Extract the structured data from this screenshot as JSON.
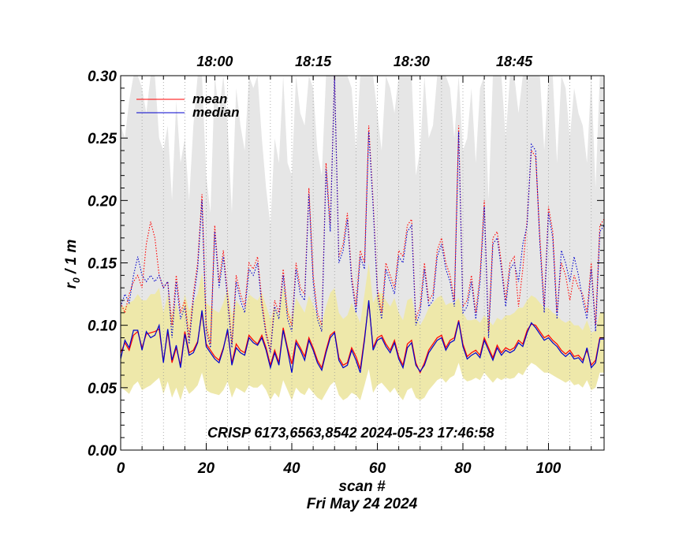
{
  "chart_data": {
    "type": "line",
    "xlabel": "scan #",
    "ylabel_main": "r",
    "ylabel_sub": "0",
    "ylabel_rest": " / 1 m",
    "date_label": "Fri May 24 2024",
    "annotation": "CRISP 6173,6563,8542 2024-05-23 17:46:58",
    "xlim": [
      0,
      113
    ],
    "ylim": [
      0.0,
      0.3
    ],
    "x_ticks": [
      "0",
      "20",
      "40",
      "60",
      "80",
      "100"
    ],
    "x_tick_values": [
      0,
      20,
      40,
      60,
      80,
      100
    ],
    "y_ticks": [
      "0.00",
      "0.05",
      "0.10",
      "0.15",
      "0.20",
      "0.25",
      "0.30"
    ],
    "y_tick_values": [
      0.0,
      0.05,
      0.1,
      0.15,
      0.2,
      0.25,
      0.3
    ],
    "time_ticks": [
      {
        "label": "18:00",
        "scan": 22
      },
      {
        "label": "18:15",
        "scan": 45
      },
      {
        "label": "18:30",
        "scan": 68
      },
      {
        "label": "18:45",
        "scan": 92
      }
    ],
    "scan_markers": [
      5,
      10,
      15,
      20,
      25,
      30,
      35,
      40,
      45,
      50,
      55,
      60,
      65,
      70,
      75,
      80,
      85,
      90,
      95,
      100,
      105,
      110
    ],
    "legend": [
      {
        "name": "mean",
        "color": "#ff0000"
      },
      {
        "name": "median",
        "color": "#0000cc"
      }
    ],
    "colors": {
      "mean": "#ff0000",
      "median": "#0000cc",
      "band": "#eee8aa",
      "gray_band": "#e6e6e6"
    },
    "series": [
      {
        "name": "mean",
        "style": "solid",
        "values": [
          0.078,
          0.086,
          0.08,
          0.092,
          0.095,
          0.082,
          0.093,
          0.094,
          0.095,
          0.097,
          0.071,
          0.095,
          0.07,
          0.082,
          0.068,
          0.095,
          0.078,
          0.08,
          0.087,
          0.11,
          0.085,
          0.08,
          0.075,
          0.072,
          0.082,
          0.095,
          0.07,
          0.085,
          0.08,
          0.078,
          0.092,
          0.088,
          0.085,
          0.092,
          0.082,
          0.068,
          0.08,
          0.07,
          0.098,
          0.082,
          0.069,
          0.088,
          0.082,
          0.075,
          0.09,
          0.082,
          0.072,
          0.066,
          0.08,
          0.092,
          0.095,
          0.074,
          0.068,
          0.07,
          0.082,
          0.075,
          0.065,
          0.09,
          0.118,
          0.082,
          0.09,
          0.092,
          0.085,
          0.08,
          0.088,
          0.075,
          0.068,
          0.085,
          0.088,
          0.07,
          0.062,
          0.07,
          0.08,
          0.085,
          0.09,
          0.092,
          0.082,
          0.088,
          0.09,
          0.104,
          0.085,
          0.075,
          0.078,
          0.08,
          0.076,
          0.09,
          0.082,
          0.074,
          0.084,
          0.078,
          0.082,
          0.08,
          0.082,
          0.088,
          0.085,
          0.096,
          0.101,
          0.1,
          0.095,
          0.09,
          0.092,
          0.088,
          0.085,
          0.08,
          0.077,
          0.08,
          0.075,
          0.076,
          0.072,
          0.08,
          0.068,
          0.072,
          0.09,
          0.09
        ]
      },
      {
        "name": "median",
        "style": "solid",
        "values": [
          0.073,
          0.088,
          0.082,
          0.096,
          0.096,
          0.08,
          0.095,
          0.09,
          0.092,
          0.1,
          0.07,
          0.097,
          0.072,
          0.084,
          0.066,
          0.093,
          0.076,
          0.078,
          0.086,
          0.112,
          0.083,
          0.078,
          0.073,
          0.07,
          0.081,
          0.097,
          0.068,
          0.082,
          0.078,
          0.076,
          0.09,
          0.086,
          0.084,
          0.09,
          0.08,
          0.066,
          0.078,
          0.068,
          0.096,
          0.08,
          0.062,
          0.086,
          0.08,
          0.072,
          0.088,
          0.08,
          0.07,
          0.064,
          0.078,
          0.09,
          0.094,
          0.072,
          0.066,
          0.068,
          0.08,
          0.072,
          0.062,
          0.088,
          0.12,
          0.08,
          0.088,
          0.09,
          0.083,
          0.078,
          0.086,
          0.073,
          0.066,
          0.082,
          0.086,
          0.068,
          0.063,
          0.068,
          0.078,
          0.083,
          0.088,
          0.09,
          0.08,
          0.086,
          0.088,
          0.103,
          0.083,
          0.073,
          0.076,
          0.078,
          0.074,
          0.088,
          0.08,
          0.072,
          0.082,
          0.076,
          0.08,
          0.078,
          0.08,
          0.086,
          0.083,
          0.094,
          0.102,
          0.098,
          0.093,
          0.088,
          0.09,
          0.086,
          0.083,
          0.078,
          0.075,
          0.078,
          0.073,
          0.074,
          0.07,
          0.082,
          0.066,
          0.07,
          0.089,
          0.089
        ]
      },
      {
        "name": "mean_upper",
        "style": "dotted",
        "color": "#ff0000",
        "values": [
          0.118,
          0.11,
          0.125,
          0.135,
          0.14,
          0.13,
          0.165,
          0.183,
          0.17,
          0.14,
          0.13,
          0.135,
          0.1,
          0.14,
          0.11,
          0.12,
          0.09,
          0.125,
          0.15,
          0.205,
          0.1,
          0.085,
          0.18,
          0.135,
          0.16,
          0.125,
          0.085,
          0.14,
          0.125,
          0.115,
          0.15,
          0.145,
          0.155,
          0.12,
          0.095,
          0.08,
          0.12,
          0.11,
          0.145,
          0.11,
          0.1,
          0.15,
          0.13,
          0.125,
          0.21,
          0.14,
          0.11,
          0.1,
          0.23,
          0.18,
          0.3,
          0.155,
          0.165,
          0.19,
          0.14,
          0.115,
          0.16,
          0.15,
          0.26,
          0.2,
          0.13,
          0.11,
          0.15,
          0.14,
          0.13,
          0.16,
          0.155,
          0.18,
          0.185,
          0.105,
          0.115,
          0.15,
          0.12,
          0.125,
          0.16,
          0.17,
          0.15,
          0.14,
          0.12,
          0.26,
          0.115,
          0.12,
          0.14,
          0.11,
          0.14,
          0.2,
          0.095,
          0.17,
          0.175,
          0.15,
          0.12,
          0.15,
          0.155,
          0.115,
          0.145,
          0.185,
          0.24,
          0.235,
          0.17,
          0.115,
          0.195,
          0.175,
          0.11,
          0.15,
          0.14,
          0.12,
          0.14,
          0.13,
          0.125,
          0.11,
          0.15,
          0.1,
          0.18,
          0.185
        ]
      },
      {
        "name": "median_upper",
        "style": "dotted",
        "color": "#0000cc",
        "values": [
          0.115,
          0.125,
          0.118,
          0.14,
          0.155,
          0.14,
          0.135,
          0.14,
          0.135,
          0.14,
          0.13,
          0.135,
          0.09,
          0.135,
          0.105,
          0.115,
          0.085,
          0.12,
          0.145,
          0.2,
          0.095,
          0.082,
          0.175,
          0.13,
          0.155,
          0.12,
          0.082,
          0.135,
          0.12,
          0.11,
          0.145,
          0.14,
          0.15,
          0.115,
          0.092,
          0.078,
          0.115,
          0.105,
          0.14,
          0.105,
          0.095,
          0.145,
          0.125,
          0.12,
          0.205,
          0.135,
          0.105,
          0.095,
          0.225,
          0.175,
          0.3,
          0.15,
          0.16,
          0.185,
          0.135,
          0.11,
          0.155,
          0.145,
          0.255,
          0.195,
          0.125,
          0.105,
          0.145,
          0.135,
          0.125,
          0.155,
          0.15,
          0.175,
          0.18,
          0.1,
          0.11,
          0.145,
          0.115,
          0.12,
          0.155,
          0.165,
          0.145,
          0.135,
          0.115,
          0.255,
          0.11,
          0.115,
          0.135,
          0.105,
          0.135,
          0.195,
          0.09,
          0.165,
          0.17,
          0.145,
          0.115,
          0.145,
          0.15,
          0.135,
          0.165,
          0.18,
          0.245,
          0.24,
          0.165,
          0.11,
          0.19,
          0.17,
          0.105,
          0.16,
          0.15,
          0.135,
          0.155,
          0.14,
          0.12,
          0.105,
          0.145,
          0.095,
          0.175,
          0.18
        ]
      },
      {
        "name": "yellow_upper",
        "style": "band",
        "values": [
          0.115,
          0.115,
          0.118,
          0.12,
          0.125,
          0.12,
          0.12,
          0.125,
          0.125,
          0.13,
          0.11,
          0.125,
          0.108,
          0.118,
          0.105,
          0.125,
          0.112,
          0.118,
          0.125,
          0.142,
          0.118,
          0.115,
          0.112,
          0.11,
          0.118,
          0.13,
          0.108,
          0.12,
          0.115,
          0.112,
          0.125,
          0.122,
          0.12,
          0.126,
          0.116,
          0.105,
          0.115,
          0.108,
          0.132,
          0.116,
          0.105,
          0.122,
          0.116,
          0.11,
          0.124,
          0.116,
          0.108,
          0.102,
          0.115,
          0.126,
          0.13,
          0.11,
          0.105,
          0.108,
          0.118,
          0.11,
          0.102,
          0.125,
          0.15,
          0.118,
          0.125,
          0.126,
          0.12,
          0.115,
          0.122,
          0.11,
          0.104,
          0.12,
          0.122,
          0.108,
          0.1,
          0.106,
          0.114,
          0.118,
          0.122,
          0.124,
          0.116,
          0.118,
          0.118,
          0.122,
          0.11,
          0.104,
          0.104,
          0.105,
          0.102,
          0.108,
          0.104,
          0.1,
          0.106,
          0.104,
          0.108,
          0.108,
          0.11,
          0.114,
          0.114,
          0.12,
          0.124,
          0.122,
          0.118,
          0.114,
          0.114,
          0.11,
          0.108,
          0.104,
          0.102,
          0.104,
          0.1,
          0.1,
          0.096,
          0.104,
          0.094,
          0.096,
          0.11,
          0.11
        ]
      },
      {
        "name": "yellow_lower",
        "style": "band",
        "values": [
          0.05,
          0.048,
          0.045,
          0.052,
          0.055,
          0.048,
          0.05,
          0.052,
          0.055,
          0.058,
          0.045,
          0.055,
          0.042,
          0.05,
          0.04,
          0.052,
          0.045,
          0.048,
          0.052,
          0.062,
          0.048,
          0.046,
          0.045,
          0.044,
          0.048,
          0.055,
          0.042,
          0.05,
          0.048,
          0.046,
          0.052,
          0.05,
          0.05,
          0.053,
          0.048,
          0.04,
          0.046,
          0.042,
          0.056,
          0.048,
          0.04,
          0.05,
          0.046,
          0.044,
          0.05,
          0.046,
          0.042,
          0.04,
          0.046,
          0.052,
          0.055,
          0.044,
          0.04,
          0.042,
          0.046,
          0.044,
          0.04,
          0.052,
          0.065,
          0.046,
          0.052,
          0.054,
          0.05,
          0.046,
          0.05,
          0.044,
          0.04,
          0.048,
          0.05,
          0.042,
          0.04,
          0.042,
          0.048,
          0.052,
          0.056,
          0.058,
          0.054,
          0.058,
          0.06,
          0.07,
          0.058,
          0.055,
          0.056,
          0.058,
          0.056,
          0.062,
          0.058,
          0.054,
          0.058,
          0.056,
          0.058,
          0.057,
          0.058,
          0.062,
          0.06,
          0.066,
          0.07,
          0.068,
          0.065,
          0.062,
          0.062,
          0.06,
          0.058,
          0.056,
          0.054,
          0.056,
          0.052,
          0.053,
          0.05,
          0.056,
          0.048,
          0.05,
          0.062,
          0.062
        ]
      },
      {
        "name": "gray_upper",
        "style": "band",
        "values": [
          0.26,
          0.25,
          0.28,
          0.3,
          0.3,
          0.29,
          0.27,
          0.3,
          0.3,
          0.25,
          0.24,
          0.26,
          0.2,
          0.28,
          0.23,
          0.25,
          0.2,
          0.26,
          0.3,
          0.3,
          0.22,
          0.19,
          0.3,
          0.27,
          0.3,
          0.26,
          0.19,
          0.29,
          0.26,
          0.24,
          0.3,
          0.29,
          0.3,
          0.25,
          0.21,
          0.18,
          0.25,
          0.23,
          0.3,
          0.23,
          0.22,
          0.3,
          0.27,
          0.26,
          0.3,
          0.29,
          0.24,
          0.22,
          0.3,
          0.3,
          0.3,
          0.3,
          0.3,
          0.3,
          0.29,
          0.24,
          0.3,
          0.3,
          0.3,
          0.3,
          0.27,
          0.24,
          0.3,
          0.29,
          0.27,
          0.3,
          0.3,
          0.3,
          0.3,
          0.22,
          0.24,
          0.3,
          0.25,
          0.26,
          0.3,
          0.3,
          0.3,
          0.29,
          0.25,
          0.3,
          0.24,
          0.25,
          0.29,
          0.23,
          0.29,
          0.3,
          0.2,
          0.3,
          0.3,
          0.3,
          0.25,
          0.3,
          0.3,
          0.27,
          0.3,
          0.3,
          0.3,
          0.3,
          0.3,
          0.24,
          0.3,
          0.3,
          0.23,
          0.3,
          0.29,
          0.25,
          0.29,
          0.27,
          0.26,
          0.23,
          0.3,
          0.21,
          0.3,
          0.3
        ]
      },
      {
        "name": "gray_lower",
        "style": "band",
        "values": [
          0.09,
          0.095,
          0.092,
          0.1,
          0.105,
          0.098,
          0.1,
          0.102,
          0.104,
          0.108,
          0.088,
          0.104,
          0.086,
          0.096,
          0.084,
          0.104,
          0.09,
          0.094,
          0.1,
          0.122,
          0.096,
          0.092,
          0.09,
          0.088,
          0.094,
          0.108,
          0.086,
          0.098,
          0.094,
          0.09,
          0.104,
          0.1,
          0.098,
          0.104,
          0.094,
          0.084,
          0.092,
          0.086,
          0.11,
          0.094,
          0.084,
          0.1,
          0.094,
          0.088,
          0.102,
          0.094,
          0.086,
          0.082,
          0.092,
          0.104,
          0.108,
          0.088,
          0.084,
          0.086,
          0.096,
          0.088,
          0.082,
          0.104,
          0.128,
          0.096,
          0.102,
          0.104,
          0.098,
          0.094,
          0.1,
          0.088,
          0.082,
          0.098,
          0.1,
          0.086,
          0.08,
          0.084,
          0.092,
          0.096,
          0.1,
          0.102,
          0.094,
          0.098,
          0.1,
          0.112,
          0.096,
          0.09,
          0.092,
          0.094,
          0.09,
          0.1,
          0.094,
          0.088,
          0.094,
          0.092,
          0.094,
          0.094,
          0.096,
          0.1,
          0.098,
          0.106,
          0.11,
          0.108,
          0.104,
          0.1,
          0.1,
          0.098,
          0.096,
          0.092,
          0.09,
          0.092,
          0.088,
          0.088,
          0.084,
          0.092,
          0.082,
          0.086,
          0.1,
          0.1
        ]
      }
    ]
  }
}
